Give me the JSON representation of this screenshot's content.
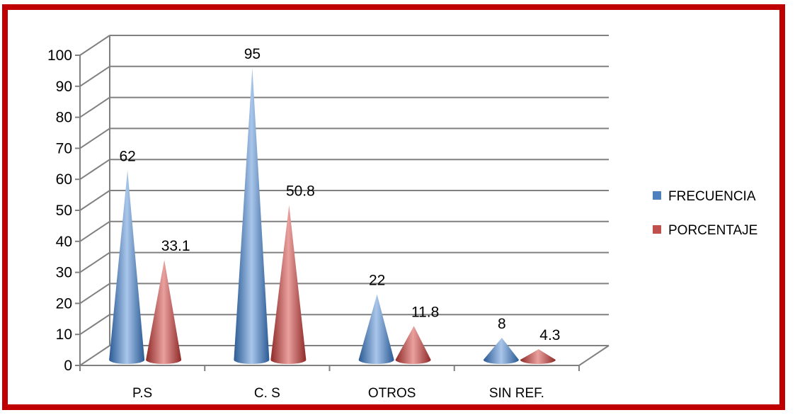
{
  "chart_data": {
    "type": "bar",
    "style": "3d-cone",
    "categories": [
      "P.S",
      "C. S",
      "OTROS",
      "SIN REF."
    ],
    "series": [
      {
        "name": "FRECUENCIA",
        "values": [
          62,
          95,
          22,
          8
        ],
        "color": "#4f81bd"
      },
      {
        "name": "PORCENTAJE",
        "values": [
          33.1,
          50.8,
          11.8,
          4.3
        ],
        "color": "#c0504d"
      }
    ],
    "data_labels": [
      [
        "62",
        "95",
        "22",
        "8"
      ],
      [
        "33.1",
        "50.8",
        "11.8",
        "4.3"
      ]
    ],
    "ylim": [
      0,
      100
    ],
    "yticks": [
      0,
      10,
      20,
      30,
      40,
      50,
      60,
      70,
      80,
      90,
      100
    ],
    "grid": true,
    "legend": "right",
    "frame_color": "#c00000"
  }
}
